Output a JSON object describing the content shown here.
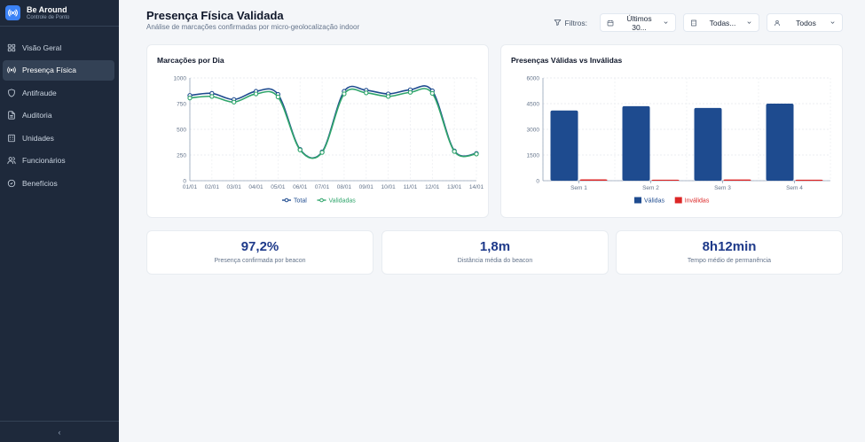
{
  "brand": {
    "name": "Be Around",
    "subtitle": "Controle de Ponto"
  },
  "sidebar": {
    "items": [
      {
        "label": "Visão Geral",
        "icon": "grid-icon"
      },
      {
        "label": "Presença Física",
        "icon": "broadcast-icon"
      },
      {
        "label": "Antifraude",
        "icon": "shield-icon"
      },
      {
        "label": "Auditoria",
        "icon": "document-icon"
      },
      {
        "label": "Unidades",
        "icon": "building-icon"
      },
      {
        "label": "Funcionários",
        "icon": "users-icon"
      },
      {
        "label": "Benefícios",
        "icon": "gift-icon"
      }
    ],
    "active_index": 1,
    "collapse_glyph": "‹"
  },
  "header": {
    "title": "Presença Física Validada",
    "subtitle": "Análise de marcações confirmadas por micro-geolocalização indoor"
  },
  "filters": {
    "label": "Filtros:",
    "period": "Últimos 30...",
    "unit": "Todas...",
    "employee": "Todos"
  },
  "colors": {
    "sidebar_bg": "#1e293b",
    "total_line": "#1e4b8f",
    "validated_line": "#2fa56b",
    "valid_bar": "#1e4b8f",
    "invalid_bar": "#dc2626",
    "kpi_value": "#1e3a8a"
  },
  "line_chart": {
    "title": "Marcações por Dia",
    "chart_data": {
      "type": "line",
      "x": [
        "01/01",
        "02/01",
        "03/01",
        "04/01",
        "05/01",
        "06/01",
        "07/01",
        "08/01",
        "09/01",
        "10/01",
        "11/01",
        "12/01",
        "13/01",
        "14/01"
      ],
      "series": [
        {
          "name": "Total",
          "values": [
            830,
            850,
            790,
            870,
            840,
            305,
            280,
            870,
            880,
            845,
            885,
            875,
            290,
            265
          ]
        },
        {
          "name": "Validadas",
          "values": [
            805,
            820,
            765,
            845,
            815,
            300,
            275,
            845,
            855,
            820,
            860,
            850,
            285,
            260
          ]
        }
      ],
      "yticks": [
        0,
        250,
        500,
        750,
        1000
      ],
      "ylim": [
        0,
        1000
      ],
      "grid": true,
      "legend": "bottom"
    }
  },
  "bar_chart": {
    "title": "Presenças Válidas vs Inválidas",
    "chart_data": {
      "type": "bar",
      "categories": [
        "Sem 1",
        "Sem 2",
        "Sem 3",
        "Sem 4"
      ],
      "series": [
        {
          "name": "Válidas",
          "values": [
            4100,
            4350,
            4250,
            4500
          ]
        },
        {
          "name": "Inválidas",
          "values": [
            80,
            60,
            70,
            55
          ]
        }
      ],
      "yticks": [
        0,
        1500,
        3000,
        4500,
        6000
      ],
      "ylim": [
        0,
        6000
      ],
      "grid": true,
      "legend": "bottom"
    }
  },
  "kpis": [
    {
      "value": "97,2%",
      "label": "Presença confirmada por beacon"
    },
    {
      "value": "1,8m",
      "label": "Distância média do beacon"
    },
    {
      "value": "8h12min",
      "label": "Tempo médio de permanência"
    }
  ]
}
